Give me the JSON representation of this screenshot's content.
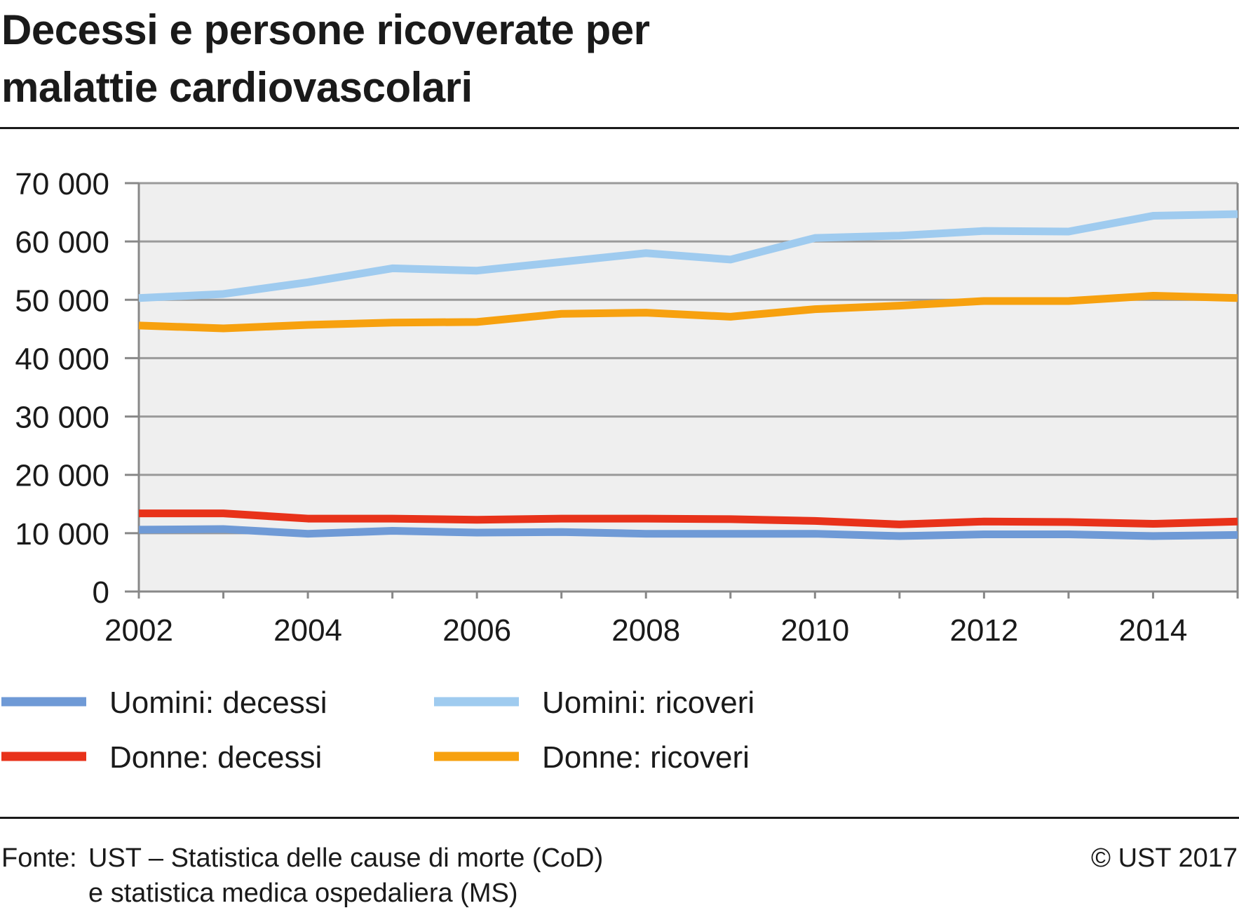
{
  "chart_data": {
    "type": "line",
    "title": "Decessi e persone ricoverate per malattie cardiovascolari",
    "x": [
      2002,
      2003,
      2004,
      2005,
      2006,
      2007,
      2008,
      2009,
      2010,
      2011,
      2012,
      2013,
      2014,
      2015
    ],
    "xticks": [
      "2002",
      "2004",
      "2006",
      "2008",
      "2010",
      "2012",
      "2014"
    ],
    "yticks": [
      "0",
      "10 000",
      "20 000",
      "30 000",
      "40 000",
      "50 000",
      "60 000",
      "70 000"
    ],
    "ylim": [
      0,
      70000
    ],
    "xlim": [
      2002,
      2015
    ],
    "grid": true,
    "legend_position": "bottom",
    "series": [
      {
        "name": "Uomini: decessi",
        "color": "#6f9ad6",
        "values": [
          10600,
          10700,
          9900,
          10400,
          10100,
          10200,
          9900,
          9900,
          9900,
          9500,
          9800,
          9800,
          9500,
          9700
        ]
      },
      {
        "name": "Uomini: ricoveri",
        "color": "#9fcbef",
        "values": [
          50300,
          51000,
          53000,
          55400,
          55000,
          56500,
          58000,
          56900,
          60600,
          61000,
          61800,
          61700,
          64400,
          64700
        ]
      },
      {
        "name": "Donne: decessi",
        "color": "#e8321a",
        "values": [
          13400,
          13400,
          12500,
          12500,
          12300,
          12500,
          12500,
          12400,
          12100,
          11500,
          12000,
          11900,
          11600,
          12000
        ]
      },
      {
        "name": "Donne: ricoveri",
        "color": "#f7a10f",
        "values": [
          45600,
          45100,
          45700,
          46100,
          46200,
          47600,
          47800,
          47100,
          48400,
          49000,
          49800,
          49800,
          50700,
          50300
        ]
      }
    ]
  },
  "source": {
    "label": "Fonte:",
    "line1": "UST – Statistica delle cause di morte (CoD)",
    "line2": "e statistica medica ospedaliera (MS)",
    "copyright": "© UST 2017"
  },
  "colors": {
    "plot_background": "#efefef",
    "gridline": "#9a9a9a",
    "axis": "#888888"
  }
}
